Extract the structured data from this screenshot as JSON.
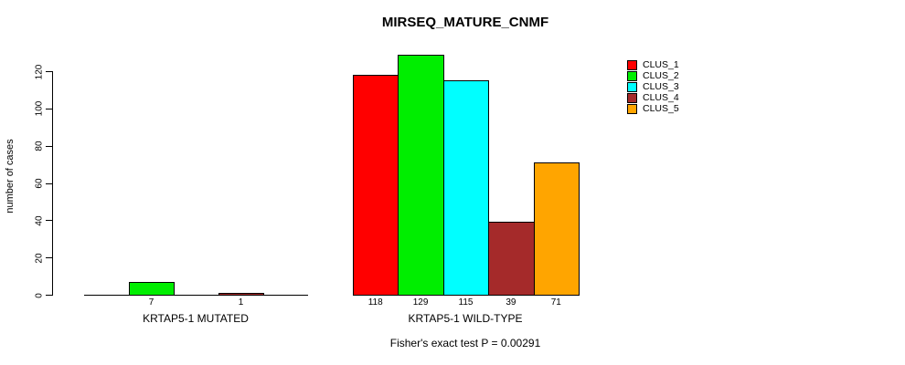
{
  "chart_data": {
    "type": "bar",
    "title": "MIRSEQ_MATURE_CNMF",
    "ylabel": "number of cases",
    "xlabel": "",
    "ylim": [
      0,
      120
    ],
    "yticks": [
      0,
      20,
      40,
      60,
      80,
      100,
      120
    ],
    "grid": false,
    "legend_position": "top-right",
    "groups": [
      "KRTAP5-1 MUTATED",
      "KRTAP5-1 WILD-TYPE"
    ],
    "series": [
      {
        "name": "CLUS_1",
        "color": "#ff0000",
        "values": [
          0,
          118
        ]
      },
      {
        "name": "CLUS_2",
        "color": "#00ee00",
        "values": [
          7,
          129
        ]
      },
      {
        "name": "CLUS_3",
        "color": "#00ffff",
        "values": [
          0,
          115
        ]
      },
      {
        "name": "CLUS_4",
        "color": "#a52a2a",
        "values": [
          1,
          39
        ]
      },
      {
        "name": "CLUS_5",
        "color": "#ffa500",
        "values": [
          0,
          71
        ]
      }
    ],
    "bar_value_labels": {
      "KRTAP5-1 MUTATED": [
        7,
        1
      ],
      "KRTAP5-1 WILD-TYPE": [
        118,
        129,
        115,
        39,
        71
      ]
    },
    "annotation": "Fisher's exact test P = 0.00291"
  }
}
